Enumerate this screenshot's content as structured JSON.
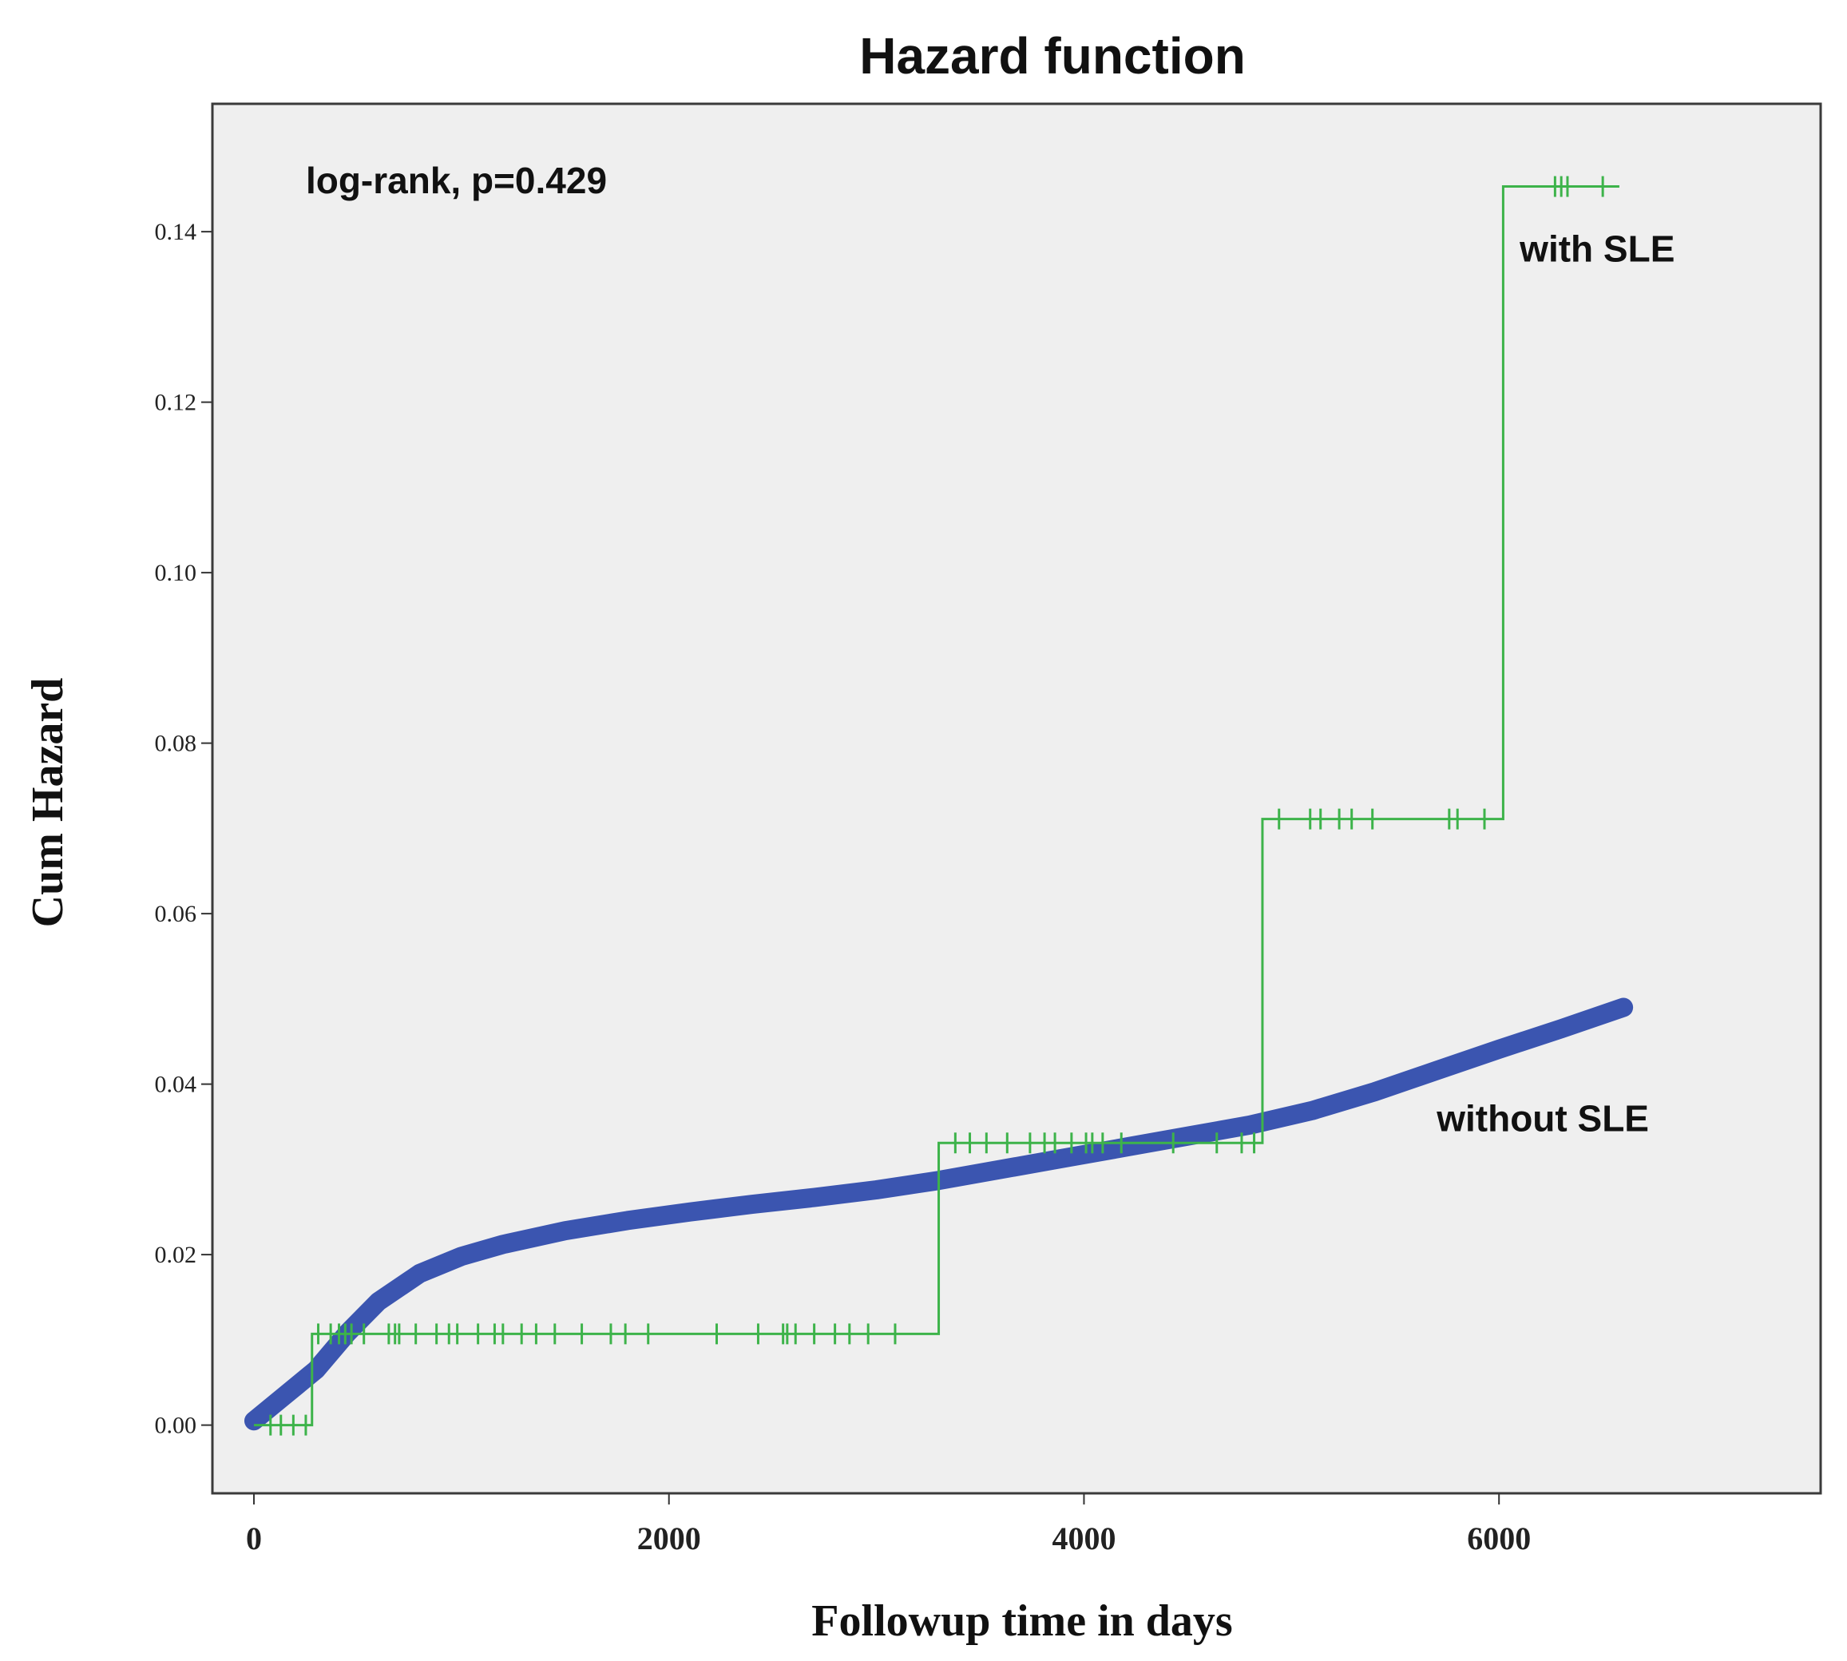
{
  "chart_data": {
    "type": "line",
    "title": "Hazard function",
    "xlabel": "Followup time in days",
    "ylabel": "Cum Hazard",
    "xlim": [
      -200,
      7550
    ],
    "ylim": [
      -0.008,
      0.155
    ],
    "xticks": [
      0,
      2000,
      4000,
      6000
    ],
    "xtick_labels": [
      "0",
      "2000",
      "4000",
      "6000"
    ],
    "yticks": [
      0.0,
      0.02,
      0.04,
      0.06,
      0.08,
      0.1,
      0.12,
      0.14
    ],
    "ytick_labels": [
      "0.00",
      "0.02",
      "0.04",
      "0.06",
      "0.08",
      "0.10",
      "0.12",
      "0.14"
    ],
    "grid": false,
    "annotations": [
      {
        "text": "log-rank, p=0.429",
        "x": 250,
        "y": 0.1445
      },
      {
        "text": "with SLE",
        "x": 6100,
        "y": 0.1365
      },
      {
        "text": "without SLE",
        "x": 5700,
        "y": 0.0345
      }
    ],
    "series": [
      {
        "name": "with SLE",
        "style": "step",
        "color": "#3db34a",
        "x": [
          0,
          280,
          3300,
          4860,
          6020,
          6580
        ],
        "y": [
          0.0,
          0.0107,
          0.0331,
          0.0711,
          0.1453,
          0.1453
        ],
        "censor_x": [
          80,
          130,
          190,
          250,
          310,
          370,
          410,
          440,
          470,
          530,
          650,
          680,
          700,
          780,
          880,
          940,
          980,
          1080,
          1160,
          1200,
          1290,
          1360,
          1450,
          1580,
          1720,
          1790,
          1900,
          2230,
          2430,
          2550,
          2570,
          2610,
          2700,
          2800,
          2870,
          2960,
          3090,
          3380,
          3450,
          3530,
          3630,
          3740,
          3810,
          3860,
          3940,
          4010,
          4040,
          4090,
          4180,
          4430,
          4640,
          4760,
          4820,
          4940,
          5090,
          5140,
          5230,
          5290,
          5390,
          5760,
          5800,
          5930,
          6270,
          6300,
          6330,
          6500
        ],
        "censor_y": [
          0.0,
          0.0,
          0.0,
          0.0,
          0.0107,
          0.0107,
          0.0107,
          0.0107,
          0.0107,
          0.0107,
          0.0107,
          0.0107,
          0.0107,
          0.0107,
          0.0107,
          0.0107,
          0.0107,
          0.0107,
          0.0107,
          0.0107,
          0.0107,
          0.0107,
          0.0107,
          0.0107,
          0.0107,
          0.0107,
          0.0107,
          0.0107,
          0.0107,
          0.0107,
          0.0107,
          0.0107,
          0.0107,
          0.0107,
          0.0107,
          0.0107,
          0.0107,
          0.0331,
          0.0331,
          0.0331,
          0.0331,
          0.0331,
          0.0331,
          0.0331,
          0.0331,
          0.0331,
          0.0331,
          0.0331,
          0.0331,
          0.0331,
          0.0331,
          0.0331,
          0.0331,
          0.0711,
          0.0711,
          0.0711,
          0.0711,
          0.0711,
          0.0711,
          0.0711,
          0.0711,
          0.0711,
          0.1453,
          0.1453,
          0.1453,
          0.1453
        ]
      },
      {
        "name": "without SLE",
        "style": "line",
        "color": "#3b55b0",
        "x": [
          0,
          150,
          300,
          450,
          600,
          800,
          1000,
          1200,
          1500,
          1800,
          2100,
          2400,
          2700,
          3000,
          3300,
          3600,
          3900,
          4200,
          4500,
          4800,
          5100,
          5400,
          5700,
          6000,
          6300,
          6600
        ],
        "y": [
          0.0005,
          0.0035,
          0.0065,
          0.0108,
          0.0145,
          0.0178,
          0.0198,
          0.0212,
          0.0228,
          0.024,
          0.025,
          0.0259,
          0.0267,
          0.0276,
          0.0287,
          0.03,
          0.0313,
          0.0326,
          0.0339,
          0.0352,
          0.0369,
          0.0391,
          0.0416,
          0.0441,
          0.0465,
          0.049
        ]
      }
    ]
  }
}
